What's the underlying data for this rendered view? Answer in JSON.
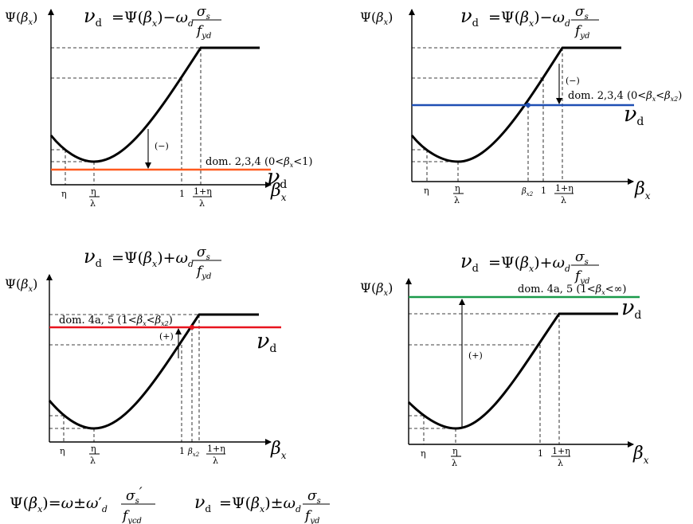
{
  "colors": {
    "orange": "#ff5a1f",
    "blue": "#1f4fb4",
    "red": "#e8141e",
    "green": "#1a9a4a",
    "ink": "#000000"
  },
  "common": {
    "y_axis_label": "Ψ(βx)",
    "x_axis_label": "βx",
    "nu_d": "νd",
    "ticks": {
      "eta": "η",
      "eta_over_lambda_num": "η",
      "eta_over_lambda_den": "λ",
      "one": "1",
      "one_plus_eta_num": "1+η",
      "one_plus_eta_den": "λ",
      "beta_x2": "βx2"
    },
    "sign_minus": "(−)",
    "sign_plus": "(+)"
  },
  "panels": [
    {
      "id": "p1",
      "equation": "νd=Ψ(βx)−ωd σs/fyd",
      "domain_label": "dom. 2,3,4 (0<βx<1)",
      "line_color": "orange"
    },
    {
      "id": "p2",
      "equation": "νd=Ψ(βx)−ωd σs/fyd",
      "domain_label": "dom. 2,3,4 (0<βx<βx2)",
      "line_color": "blue"
    },
    {
      "id": "p3",
      "equation": "νd=Ψ(βx)+ωd σs/fyd",
      "domain_label": "dom. 4a, 5 (1<βx<βx2)",
      "line_color": "red"
    },
    {
      "id": "p4",
      "equation": "νd=Ψ(βx)+ωd σs/fyd",
      "domain_label": "dom. 4a, 5 (1<βx<∞)",
      "line_color": "green"
    }
  ],
  "bottom_formulas": {
    "psi": "Ψ(βx)=ω±ω′d σs′/fycd",
    "nu": "νd=Ψ(βx)±ωd σs/fyd"
  }
}
